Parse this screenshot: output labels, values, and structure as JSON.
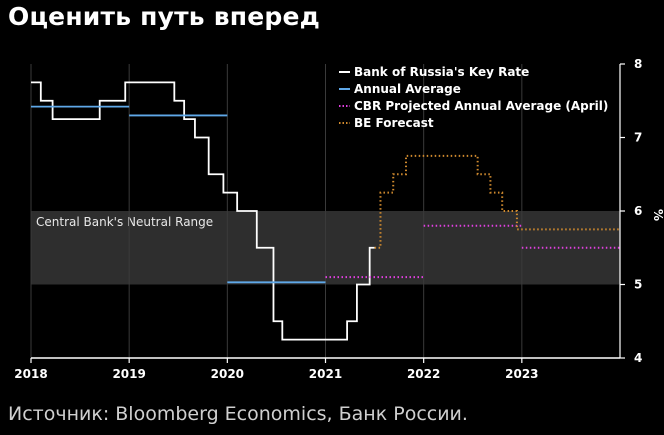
{
  "title": "Оценить путь вперед",
  "source": "Источник: Bloomberg Economics, Банк России.",
  "chart_data": {
    "type": "line",
    "title": "Оценить путь вперед",
    "xlim": [
      2018,
      2024
    ],
    "ylim": [
      4,
      8
    ],
    "x_ticks": [
      "2018",
      "2019",
      "2020",
      "2021",
      "2022",
      "2023"
    ],
    "y_ticks": [
      "4",
      "5",
      "6",
      "7",
      "8"
    ],
    "y_unit": "%",
    "grid": true,
    "legend_position": "top-right",
    "band": {
      "label": "Central Bank's Neutral Range",
      "y_from": 5,
      "y_to": 6,
      "color": "#2e2e2e"
    },
    "series": [
      {
        "name": "Bank of Russia's Key Rate",
        "color": "#ffffff",
        "style": "solid",
        "step": true,
        "points": [
          [
            2018.0,
            7.75
          ],
          [
            2018.1,
            7.5
          ],
          [
            2018.22,
            7.25
          ],
          [
            2018.7,
            7.5
          ],
          [
            2018.96,
            7.75
          ],
          [
            2019.46,
            7.5
          ],
          [
            2019.56,
            7.25
          ],
          [
            2019.67,
            7.0
          ],
          [
            2019.81,
            6.5
          ],
          [
            2019.96,
            6.25
          ],
          [
            2020.1,
            6.0
          ],
          [
            2020.3,
            5.5
          ],
          [
            2020.47,
            4.5
          ],
          [
            2020.56,
            4.25
          ],
          [
            2021.22,
            4.5
          ],
          [
            2021.32,
            5.0
          ],
          [
            2021.45,
            5.5
          ],
          [
            2021.5,
            5.5
          ]
        ]
      },
      {
        "name": "Annual Average",
        "color": "#5fa8e8",
        "style": "solid",
        "segments": [
          [
            [
              2018.0,
              7.42
            ],
            [
              2019.0,
              7.42
            ]
          ],
          [
            [
              2019.0,
              7.3
            ],
            [
              2020.0,
              7.3
            ]
          ],
          [
            [
              2020.0,
              5.03
            ],
            [
              2021.0,
              5.03
            ]
          ]
        ]
      },
      {
        "name": "CBR Projected Annual Average (April)",
        "color": "#e040e0",
        "style": "dotted",
        "segments": [
          [
            [
              2021.0,
              5.1
            ],
            [
              2022.0,
              5.1
            ]
          ],
          [
            [
              2022.0,
              5.8
            ],
            [
              2023.0,
              5.8
            ]
          ],
          [
            [
              2023.0,
              5.5
            ],
            [
              2024.0,
              5.5
            ]
          ]
        ]
      },
      {
        "name": "BE Forecast",
        "color": "#d08a2e",
        "style": "dotted",
        "step": true,
        "points": [
          [
            2021.5,
            5.5
          ],
          [
            2021.56,
            6.25
          ],
          [
            2021.69,
            6.5
          ],
          [
            2021.82,
            6.75
          ],
          [
            2022.55,
            6.5
          ],
          [
            2022.68,
            6.25
          ],
          [
            2022.8,
            6.0
          ],
          [
            2022.95,
            5.75
          ],
          [
            2024.0,
            5.75
          ]
        ]
      }
    ]
  }
}
